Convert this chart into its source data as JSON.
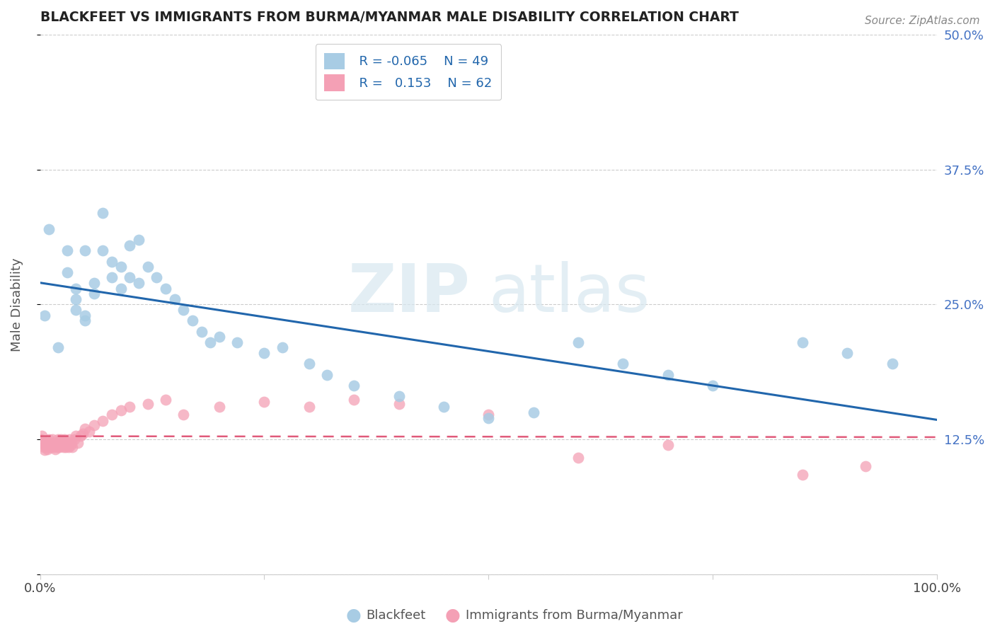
{
  "title": "BLACKFEET VS IMMIGRANTS FROM BURMA/MYANMAR MALE DISABILITY CORRELATION CHART",
  "source": "Source: ZipAtlas.com",
  "ylabel": "Male Disability",
  "xlim": [
    0,
    1.0
  ],
  "ylim": [
    0,
    0.5
  ],
  "yticks": [
    0.0,
    0.125,
    0.25,
    0.375,
    0.5
  ],
  "ytick_labels": [
    "",
    "12.5%",
    "25.0%",
    "37.5%",
    "50.0%"
  ],
  "xticks": [
    0.0,
    0.25,
    0.5,
    0.75,
    1.0
  ],
  "xtick_labels": [
    "0.0%",
    "",
    "",
    "",
    "100.0%"
  ],
  "blackfeet_R": "-0.065",
  "blackfeet_N": "49",
  "burma_R": "0.153",
  "burma_N": "62",
  "blackfeet_color": "#a8cce4",
  "burma_color": "#f4a0b5",
  "blackfeet_line_color": "#2166ac",
  "burma_line_color": "#e05a7a",
  "watermark_zip": "ZIP",
  "watermark_atlas": "atlas",
  "background_color": "#ffffff",
  "grid_color": "#cccccc",
  "blackfeet_x": [
    0.005,
    0.01,
    0.02,
    0.03,
    0.03,
    0.04,
    0.04,
    0.04,
    0.05,
    0.05,
    0.05,
    0.06,
    0.06,
    0.07,
    0.07,
    0.08,
    0.08,
    0.09,
    0.09,
    0.1,
    0.1,
    0.11,
    0.11,
    0.12,
    0.13,
    0.14,
    0.15,
    0.16,
    0.17,
    0.18,
    0.19,
    0.2,
    0.22,
    0.25,
    0.27,
    0.3,
    0.32,
    0.35,
    0.4,
    0.45,
    0.5,
    0.55,
    0.6,
    0.65,
    0.7,
    0.75,
    0.85,
    0.9,
    0.95
  ],
  "blackfeet_y": [
    0.24,
    0.32,
    0.21,
    0.3,
    0.28,
    0.265,
    0.255,
    0.245,
    0.235,
    0.24,
    0.3,
    0.27,
    0.26,
    0.335,
    0.3,
    0.29,
    0.275,
    0.265,
    0.285,
    0.305,
    0.275,
    0.31,
    0.27,
    0.285,
    0.275,
    0.265,
    0.255,
    0.245,
    0.235,
    0.225,
    0.215,
    0.22,
    0.215,
    0.205,
    0.21,
    0.195,
    0.185,
    0.175,
    0.165,
    0.155,
    0.145,
    0.15,
    0.215,
    0.195,
    0.185,
    0.175,
    0.215,
    0.205,
    0.195
  ],
  "burma_x": [
    0.001,
    0.002,
    0.003,
    0.004,
    0.005,
    0.006,
    0.007,
    0.008,
    0.009,
    0.01,
    0.01,
    0.011,
    0.012,
    0.013,
    0.014,
    0.015,
    0.016,
    0.017,
    0.018,
    0.019,
    0.02,
    0.021,
    0.022,
    0.023,
    0.024,
    0.025,
    0.026,
    0.027,
    0.028,
    0.029,
    0.03,
    0.031,
    0.032,
    0.033,
    0.034,
    0.035,
    0.036,
    0.038,
    0.04,
    0.042,
    0.045,
    0.048,
    0.05,
    0.055,
    0.06,
    0.07,
    0.08,
    0.09,
    0.1,
    0.12,
    0.14,
    0.16,
    0.2,
    0.25,
    0.3,
    0.35,
    0.4,
    0.5,
    0.6,
    0.7,
    0.85,
    0.92
  ],
  "burma_y": [
    0.125,
    0.128,
    0.122,
    0.118,
    0.115,
    0.12,
    0.118,
    0.116,
    0.122,
    0.118,
    0.125,
    0.12,
    0.118,
    0.122,
    0.125,
    0.118,
    0.12,
    0.116,
    0.122,
    0.118,
    0.125,
    0.12,
    0.118,
    0.125,
    0.12,
    0.122,
    0.118,
    0.125,
    0.12,
    0.118,
    0.122,
    0.12,
    0.118,
    0.125,
    0.12,
    0.122,
    0.118,
    0.125,
    0.128,
    0.122,
    0.128,
    0.13,
    0.135,
    0.132,
    0.138,
    0.142,
    0.148,
    0.152,
    0.155,
    0.158,
    0.162,
    0.148,
    0.155,
    0.16,
    0.155,
    0.162,
    0.158,
    0.148,
    0.108,
    0.12,
    0.092,
    0.1
  ]
}
